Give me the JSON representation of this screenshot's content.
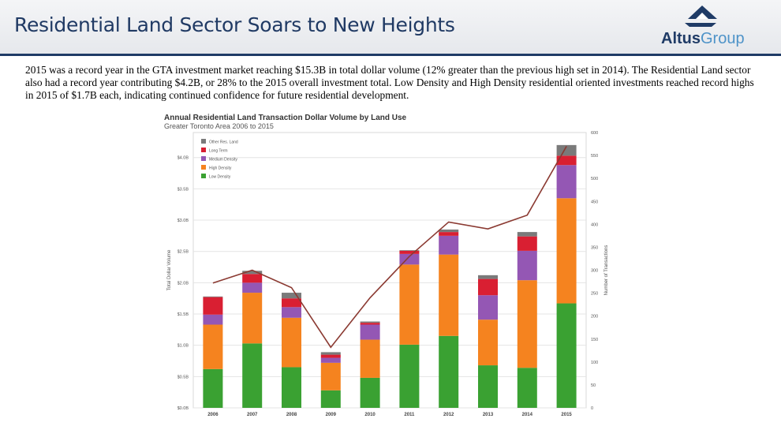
{
  "header": {
    "title": "Residential Land Sector Soars to New Heights",
    "logo_word1": "Altus",
    "logo_word2": "Group"
  },
  "intro_text": "2015 was a record year in the GTA investment market reaching $15.3B in total dollar volume (12% greater than the previous high set in 2014). The Residential Land sector also had a record year contributing $4.2B, or 28% to the 2015 overall investment total. Low Density and High Density residential oriented investments reached record highs in 2015 of $1.7B each, indicating continued confidence for future residential development.",
  "chart_data": {
    "type": "bar",
    "stacked": true,
    "title": "Annual Residential Land Transaction Dollar Volume by Land Use",
    "subtitle": "Greater Toronto Area 2006 to 2015",
    "ylabel": "Total Dollar Volume",
    "y2label": "Number of Transactions",
    "categories": [
      "2006",
      "2007",
      "2008",
      "2009",
      "2010",
      "2011",
      "2012",
      "2013",
      "2014",
      "2015"
    ],
    "ylim": [
      0,
      4.4
    ],
    "yticks": [
      0,
      0.5,
      1.0,
      1.5,
      2.0,
      2.5,
      3.0,
      3.5,
      4.0
    ],
    "ytick_labels": [
      "$0.0B",
      "$0.5B",
      "$1.0B",
      "$1.5B",
      "$2.0B",
      "$2.5B",
      "$3.0B",
      "$3.5B",
      "$4.0B"
    ],
    "y2lim": [
      0,
      600
    ],
    "y2ticks": [
      0,
      50,
      100,
      150,
      200,
      250,
      300,
      350,
      400,
      450,
      500,
      550,
      600
    ],
    "y2tick_labels": [
      "0",
      "50",
      "100",
      "150",
      "200",
      "250",
      "300",
      "350",
      "400",
      "450",
      "500",
      "550",
      "600"
    ],
    "legend_position": "top-left",
    "grid": true,
    "series": [
      {
        "name": "Low Density",
        "color": "#3aa132",
        "values": [
          0.62,
          1.03,
          0.65,
          0.28,
          0.48,
          1.01,
          1.15,
          0.68,
          0.64,
          1.67
        ]
      },
      {
        "name": "High Density",
        "color": "#f5831f",
        "values": [
          0.71,
          0.81,
          0.79,
          0.44,
          0.61,
          1.28,
          1.3,
          0.73,
          1.4,
          1.68
        ]
      },
      {
        "name": "Medium Density",
        "color": "#9457b4",
        "values": [
          0.16,
          0.16,
          0.17,
          0.08,
          0.24,
          0.17,
          0.3,
          0.39,
          0.47,
          0.53
        ]
      },
      {
        "name": "Long Term",
        "color": "#d91f32",
        "values": [
          0.28,
          0.14,
          0.14,
          0.05,
          0.03,
          0.05,
          0.06,
          0.26,
          0.23,
          0.15
        ]
      },
      {
        "name": "Other Res. Land",
        "color": "#7a7a7a",
        "values": [
          0.01,
          0.05,
          0.09,
          0.04,
          0.02,
          0.01,
          0.04,
          0.06,
          0.07,
          0.17
        ]
      }
    ],
    "line": {
      "name": "Number of Transactions",
      "axis": "right",
      "color": "#8b3a32",
      "values": [
        272,
        300,
        262,
        132,
        240,
        330,
        405,
        390,
        420,
        570
      ]
    }
  }
}
